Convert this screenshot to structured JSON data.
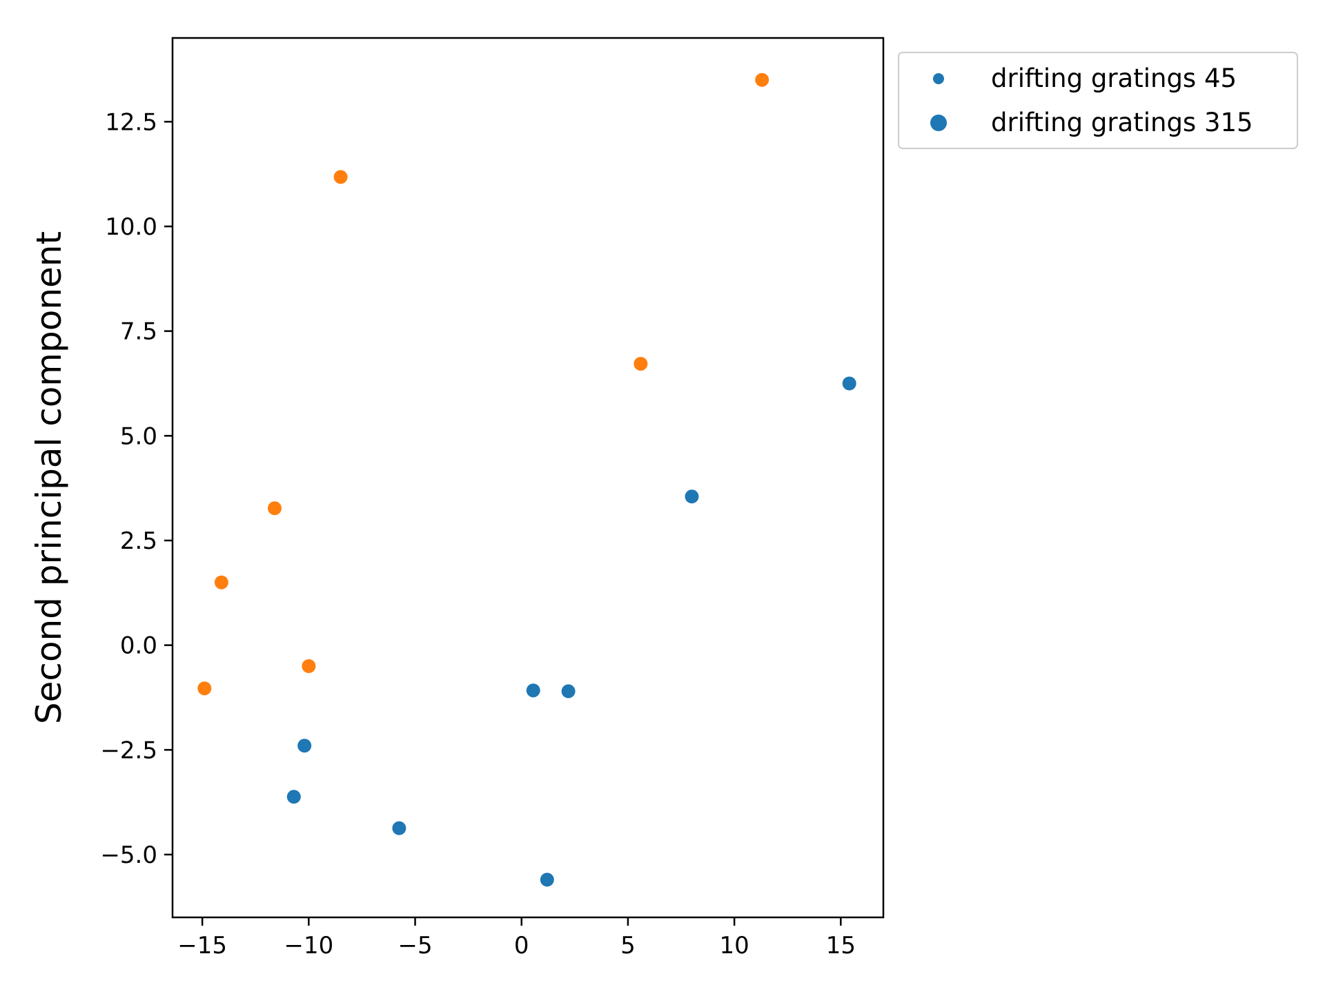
{
  "chart_data": {
    "type": "scatter",
    "ylabel": "Second principal component",
    "xlim": [
      -16.4,
      17.0
    ],
    "ylim": [
      -6.5,
      14.5
    ],
    "x_ticks": [
      -15,
      -10,
      -5,
      0,
      5,
      10,
      15
    ],
    "x_tick_labels": [
      "−15",
      "−10",
      "−5",
      "0",
      "5",
      "10",
      "15"
    ],
    "y_ticks": [
      -5.0,
      -2.5,
      0.0,
      2.5,
      5.0,
      7.5,
      10.0,
      12.5
    ],
    "y_tick_labels": [
      "−5.0",
      "−2.5",
      "0.0",
      "2.5",
      "5.0",
      "7.5",
      "10.0",
      "12.5"
    ],
    "grid": false,
    "legend_position": "outside upper right",
    "series": [
      {
        "name": "drifting gratings 45",
        "color": "#1f77b4",
        "points": [
          [
            15.4,
            6.25
          ],
          [
            8.0,
            3.55
          ],
          [
            0.55,
            -1.08
          ],
          [
            2.2,
            -1.1
          ],
          [
            -10.2,
            -2.4
          ],
          [
            -10.7,
            -3.62
          ],
          [
            -5.75,
            -4.37
          ],
          [
            1.2,
            -5.6
          ]
        ]
      },
      {
        "name": "drifting gratings 315",
        "color": "#ff7f0e",
        "points": [
          [
            11.3,
            13.5
          ],
          [
            -8.5,
            11.18
          ],
          [
            5.6,
            6.72
          ],
          [
            -11.6,
            3.27
          ],
          [
            -14.1,
            1.5
          ],
          [
            -10.0,
            -0.5
          ],
          [
            -14.9,
            -1.03
          ]
        ]
      }
    ]
  }
}
